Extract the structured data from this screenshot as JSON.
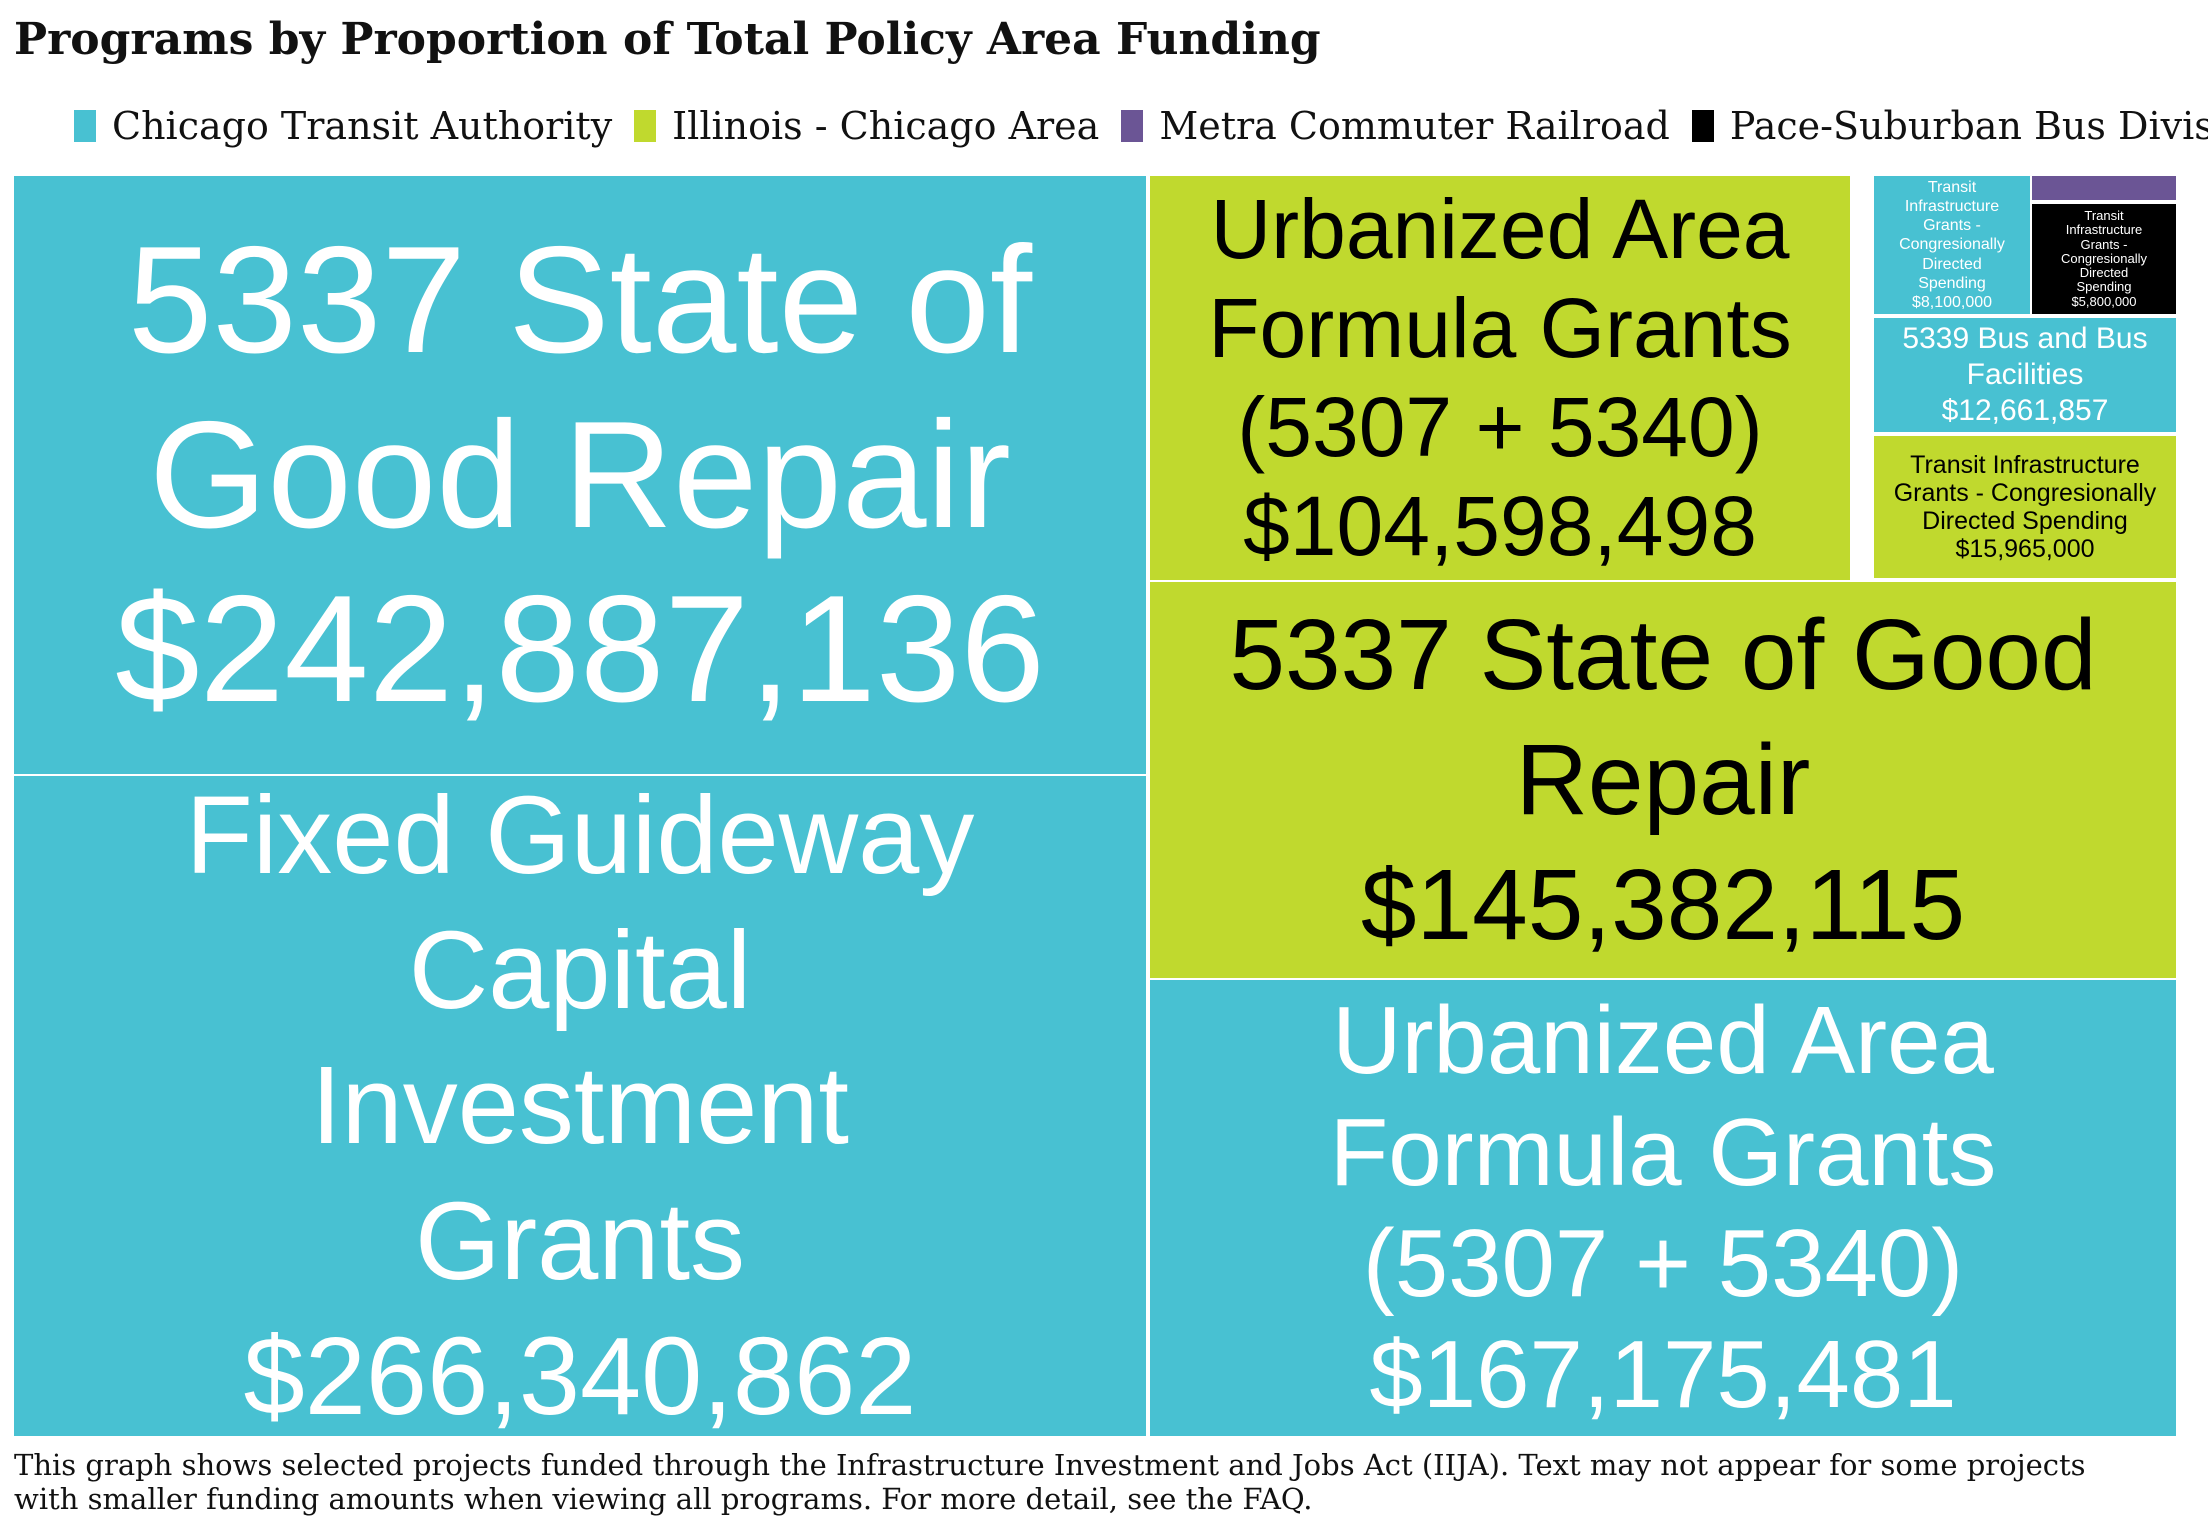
{
  "title": "Programs by Proportion of Total Policy Area Funding",
  "legend": [
    {
      "label": "Chicago Transit Authority",
      "color": "#48c1d2"
    },
    {
      "label": "Illinois - Chicago Area",
      "color": "#c0d92e"
    },
    {
      "label": "Metra Commuter Railroad",
      "color": "#6b5595"
    },
    {
      "label": "Pace-Suburban Bus Division",
      "color": "#000000"
    }
  ],
  "chart_data": {
    "type": "treemap",
    "nodes": [
      {
        "label": "5337 State of Good Repair",
        "value": 242887136,
        "value_label": "$242,887,136",
        "group": "Chicago Transit Authority"
      },
      {
        "label": "Fixed Guideway Capital Investment Grants",
        "value": 266340862,
        "value_label": "$266,340,862",
        "group": "Chicago Transit Authority"
      },
      {
        "label": "Urbanized Area Formula Grants (5307 + 5340)",
        "value": 104598498,
        "value_label": "$104,598,498",
        "group": "Illinois - Chicago Area"
      },
      {
        "label": "5337 State of Good Repair",
        "value": 145382115,
        "value_label": "$145,382,115",
        "group": "Illinois - Chicago Area"
      },
      {
        "label": "Urbanized Area Formula Grants (5307 + 5340)",
        "value": 167175481,
        "value_label": "$167,175,481",
        "group": "Chicago Transit Authority"
      },
      {
        "label": "Transit Infrastructure Grants - Congresionally Directed Spending",
        "value": 8100000,
        "value_label": "$8,100,000",
        "group": "Chicago Transit Authority"
      },
      {
        "label": "",
        "value": null,
        "value_label": "",
        "group": "Metra Commuter Railroad"
      },
      {
        "label": "Transit Infrastructure Grants - Congresionally Directed Spending",
        "value": 5800000,
        "value_label": "$5,800,000",
        "group": "Pace-Suburban Bus Division"
      },
      {
        "label": "5339 Bus and Bus Facilities",
        "value": 12661857,
        "value_label": "$12,661,857",
        "group": "Chicago Transit Authority"
      },
      {
        "label": "Transit Infrastructure Grants - Congresionally Directed Spending",
        "value": 15965000,
        "value_label": "$15,965,000",
        "group": "Illinois - Chicago Area"
      }
    ]
  },
  "footnote": {
    "line1": "This graph shows selected projects funded through the Infrastructure Investment and Jobs Act (IIJA). Text may not appear for some projects",
    "line2": "with smaller funding amounts when viewing all programs. For more detail, see the FAQ."
  }
}
